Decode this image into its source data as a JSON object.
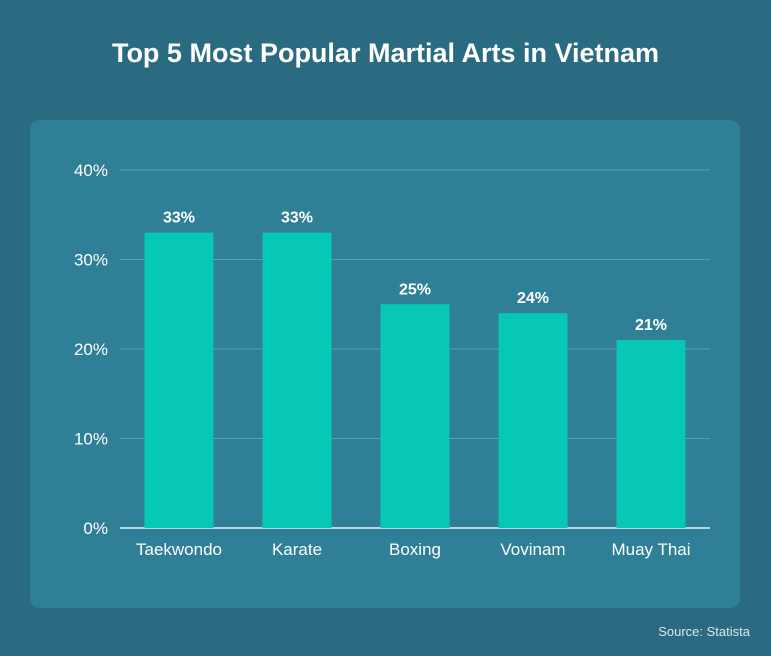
{
  "colors": {
    "background": "#2a6b82",
    "panel": "#2f7f96",
    "bar": "#07c8b4",
    "grid": "#5b9fb2",
    "text": "#ffffff"
  },
  "chart_data": {
    "type": "bar",
    "title": "Top 5 Most Popular Martial Arts in Vietnam",
    "categories": [
      "Taekwondo",
      "Karate",
      "Boxing",
      "Vovinam",
      "Muay Thai"
    ],
    "values": [
      33,
      33,
      25,
      24,
      21
    ],
    "data_labels": [
      "33%",
      "33%",
      "25%",
      "24%",
      "21%"
    ],
    "ylim": [
      0,
      40
    ],
    "yticks": [
      0,
      10,
      20,
      30,
      40
    ],
    "ytick_labels": [
      "0%",
      "10%",
      "20%",
      "30%",
      "40%"
    ],
    "xlabel": "",
    "ylabel": "",
    "grid": true,
    "legend": "none"
  },
  "source": "Source: Statista"
}
